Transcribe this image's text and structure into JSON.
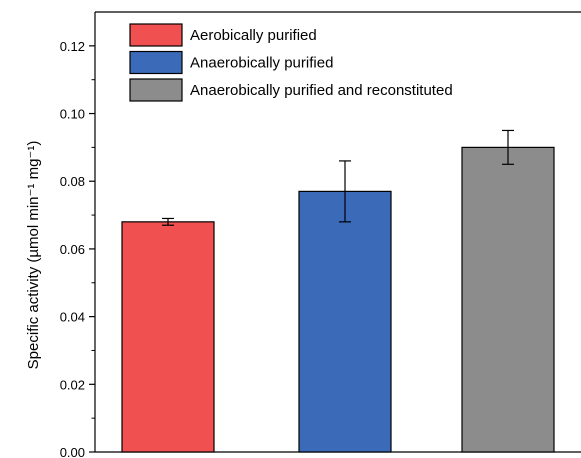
{
  "chart_data": {
    "type": "bar",
    "title": "",
    "xlabel": "",
    "ylabel": "Specific activity (µmol min⁻¹ mg⁻¹)",
    "ylim": [
      0,
      0.13
    ],
    "yticks": [
      "0.00",
      "0.02",
      "0.04",
      "0.06",
      "0.08",
      "0.10",
      "0.12"
    ],
    "grid": false,
    "legend_position": "top-center",
    "series": [
      {
        "name": "Aerobically purified",
        "value": 0.068,
        "error": 0.001,
        "color": "#f05050"
      },
      {
        "name": "Anaerobically purified",
        "value": 0.077,
        "error": 0.009,
        "color": "#3b6ab8"
      },
      {
        "name": "Anaerobically purified and reconstituted",
        "value": 0.09,
        "error": 0.005,
        "color": "#8c8c8c"
      }
    ]
  }
}
